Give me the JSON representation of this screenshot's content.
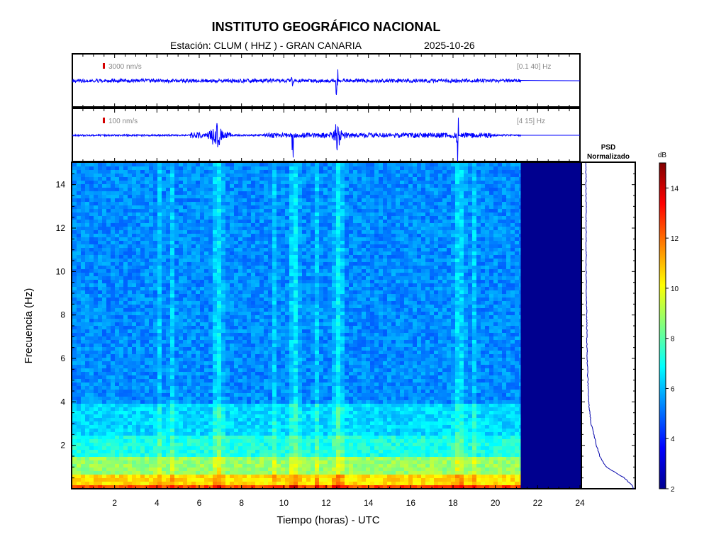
{
  "header": {
    "title": "INSTITUTO GEOGRÁFICO NACIONAL",
    "station": "Estación:  CLUM ( HHZ ) - GRAN CANARIA",
    "date": "2025-10-26"
  },
  "trace1": {
    "amp_label": "3000 nm/s",
    "band_label": "[0.1 40] Hz"
  },
  "trace2": {
    "amp_label": "100 nm/s",
    "band_label": "[4 15] Hz"
  },
  "psd": {
    "title_line1": "PSD",
    "title_line2": "Normalizado"
  },
  "colorbar": {
    "unit": "dB",
    "ticks": [
      2,
      4,
      6,
      8,
      10,
      12,
      14
    ],
    "range": [
      2,
      15
    ]
  },
  "colors": {
    "trace": "#0000ff",
    "nodata": "#00008f",
    "amp_marker": "#d40000"
  },
  "chart_data": {
    "type": "heatmap",
    "xlabel": "Tiempo (horas) - UTC",
    "ylabel": "Frecuencia  (Hz)",
    "xlim": [
      0,
      24
    ],
    "ylim": [
      0,
      15
    ],
    "x_ticks": [
      2,
      4,
      6,
      8,
      10,
      12,
      14,
      16,
      18,
      20,
      22,
      24
    ],
    "y_ticks": [
      2,
      4,
      6,
      8,
      10,
      12,
      14
    ],
    "data_end_hour": 21.2,
    "bands_db": [
      {
        "f_from": 0,
        "f_to": 0.3,
        "db": 12.5
      },
      {
        "f_from": 0.3,
        "f_to": 0.8,
        "db": 10.5
      },
      {
        "f_from": 0.8,
        "f_to": 1.5,
        "db": 8.8
      },
      {
        "f_from": 1.5,
        "f_to": 2.5,
        "db": 7.2
      },
      {
        "f_from": 2.5,
        "f_to": 4,
        "db": 6.4
      },
      {
        "f_from": 4,
        "f_to": 15,
        "db": 5.4
      }
    ],
    "events_hours": [
      6.8,
      10.4,
      12.5,
      18.2
    ],
    "psd_normalized": [
      {
        "f": 0.1,
        "v": 1.0
      },
      {
        "f": 0.5,
        "v": 0.82
      },
      {
        "f": 1,
        "v": 0.45
      },
      {
        "f": 1.5,
        "v": 0.32
      },
      {
        "f": 2,
        "v": 0.25
      },
      {
        "f": 3,
        "v": 0.14
      },
      {
        "f": 4,
        "v": 0.09
      },
      {
        "f": 6,
        "v": 0.06
      },
      {
        "f": 8,
        "v": 0.05
      },
      {
        "f": 10,
        "v": 0.04
      },
      {
        "f": 12,
        "v": 0.04
      },
      {
        "f": 15,
        "v": 0.035
      }
    ]
  }
}
